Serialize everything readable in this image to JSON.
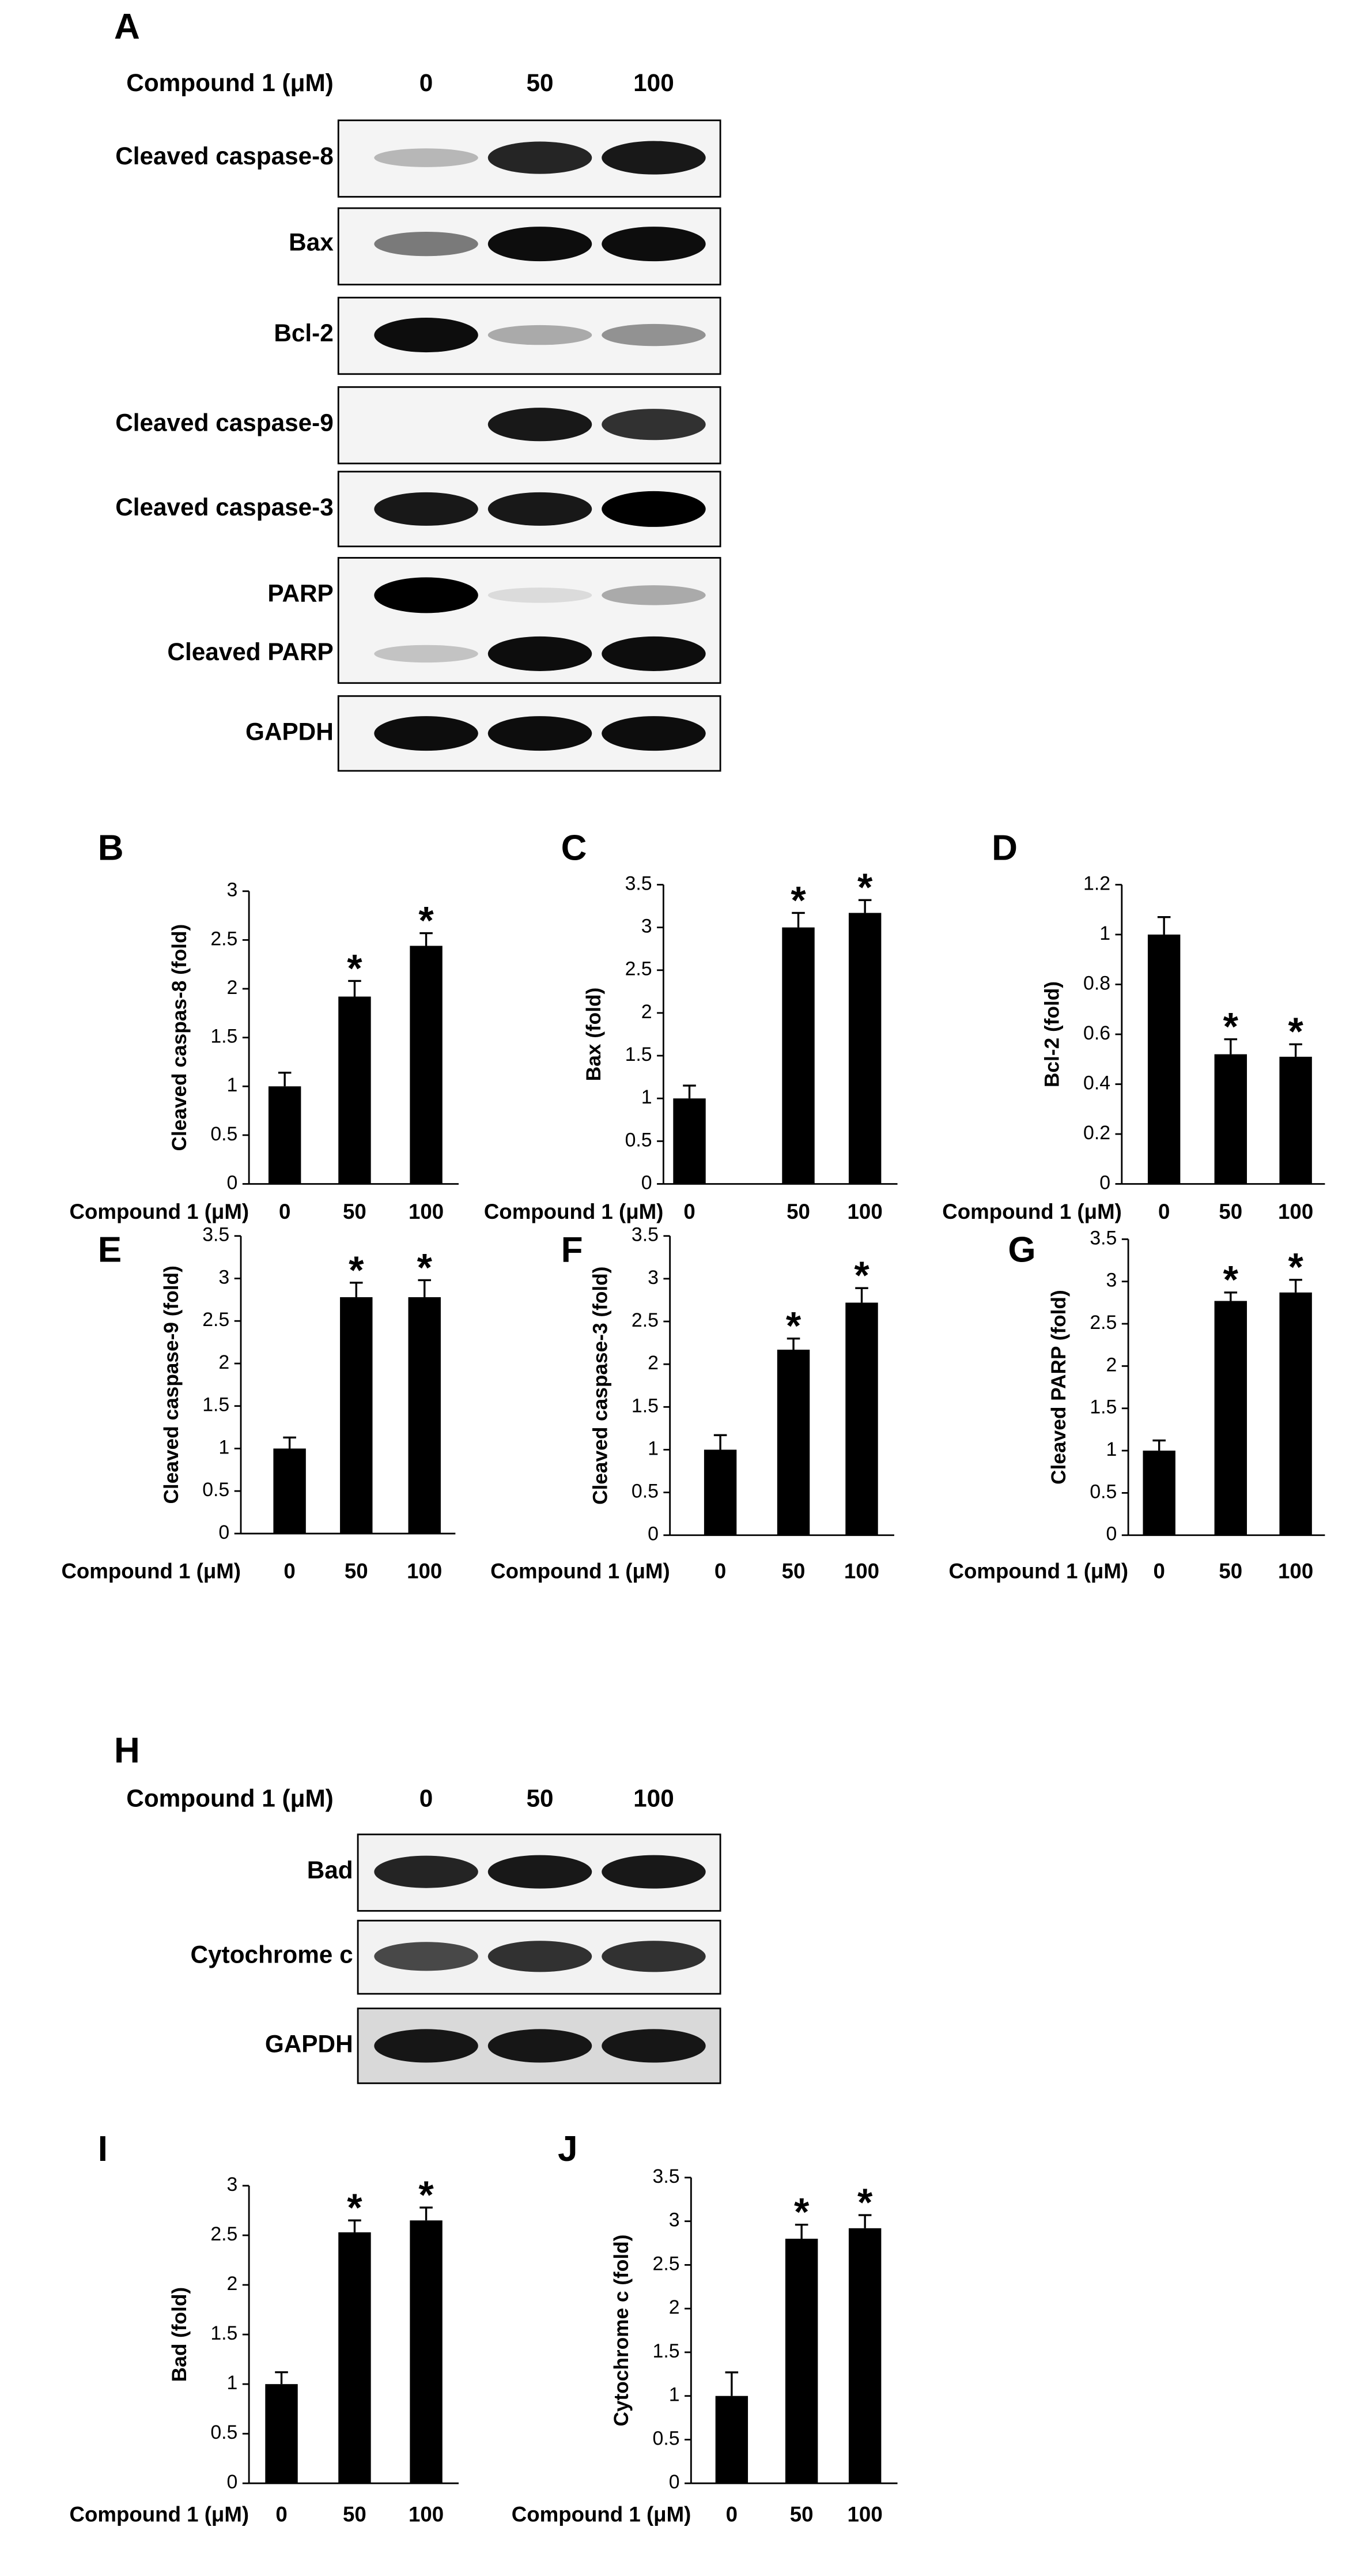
{
  "blots": [
    {
      "panel": "A",
      "header": "Compound 1 (μM)",
      "lanes": [
        "0",
        "50",
        "100"
      ],
      "rows": [
        "Cleaved caspase-8",
        "Bax",
        "Bcl-2",
        "Cleaved caspase-9",
        "Cleaved caspase-3",
        "PARP",
        "Cleaved PARP",
        "GAPDH"
      ]
    },
    {
      "panel": "H",
      "header": "Compound 1 (μM)",
      "lanes": [
        "0",
        "50",
        "100"
      ],
      "rows": [
        "Bad",
        "Cytochrome c",
        "GAPDH"
      ]
    }
  ],
  "chart_data": [
    {
      "type": "bar",
      "panel": "B",
      "ylabel": "Cleaved caspas-8 (fold)",
      "xlabel": "Compound 1 (μM)",
      "categories": [
        "0",
        "50",
        "100"
      ],
      "values": [
        1,
        1.92,
        2.44
      ],
      "errors": [
        0.14,
        0.16,
        0.13
      ],
      "significance": [
        null,
        "*",
        "*"
      ],
      "color": "#000000",
      "ylim": [
        0,
        3
      ],
      "yticks": [
        0,
        0.5,
        1,
        1.5,
        2,
        2.5,
        3
      ]
    },
    {
      "type": "bar",
      "panel": "C",
      "ylabel": "Bax (fold)",
      "xlabel": "Compound 1 (μM)",
      "categories": [
        "0",
        "50",
        "100"
      ],
      "values": [
        1,
        3.0,
        3.17
      ],
      "errors": [
        0.15,
        0.17,
        0.15
      ],
      "significance": [
        null,
        "*",
        "*"
      ],
      "color": "#000000",
      "ylim": [
        0,
        3.5
      ],
      "yticks": [
        0,
        0.5,
        1,
        1.5,
        2,
        2.5,
        3,
        3.5
      ]
    },
    {
      "type": "bar",
      "panel": "D",
      "ylabel": "Bcl-2 (fold)",
      "xlabel": "Compound 1 (μM)",
      "categories": [
        "0",
        "50",
        "100"
      ],
      "values": [
        1,
        0.52,
        0.51
      ],
      "errors": [
        0.07,
        0.06,
        0.05
      ],
      "significance": [
        null,
        "*",
        "*"
      ],
      "color": "#000000",
      "ylim": [
        0,
        1.2
      ],
      "yticks": [
        0,
        0.2,
        0.4,
        0.6,
        0.8,
        1,
        1.2
      ]
    },
    {
      "type": "bar",
      "panel": "E",
      "ylabel": "Cleaved caspase-9 (fold)",
      "xlabel": "Compound 1 (μM)",
      "categories": [
        "0",
        "50",
        "100"
      ],
      "values": [
        1,
        2.78,
        2.78
      ],
      "errors": [
        0.13,
        0.17,
        0.2
      ],
      "significance": [
        null,
        "*",
        "*"
      ],
      "color": "#000000",
      "ylim": [
        0,
        3.5
      ],
      "yticks": [
        0,
        0.5,
        1,
        1.5,
        2,
        2.5,
        3,
        3.5
      ]
    },
    {
      "type": "bar",
      "panel": "F",
      "ylabel": "Cleaved caspase-3 (fold)",
      "xlabel": "Compound 1 (μM)",
      "categories": [
        "0",
        "50",
        "100"
      ],
      "values": [
        1,
        2.17,
        2.72
      ],
      "errors": [
        0.17,
        0.13,
        0.17
      ],
      "significance": [
        null,
        "*",
        "*"
      ],
      "color": "#000000",
      "ylim": [
        0,
        3.5
      ],
      "yticks": [
        0,
        0.5,
        1,
        1.5,
        2,
        2.5,
        3,
        3.5
      ]
    },
    {
      "type": "bar",
      "panel": "G",
      "ylabel": "Cleaved PARP (fold)",
      "xlabel": "Compound 1 (μM)",
      "categories": [
        "0",
        "50",
        "100"
      ],
      "values": [
        1,
        2.77,
        2.87
      ],
      "errors": [
        0.12,
        0.1,
        0.15
      ],
      "significance": [
        null,
        "*",
        "*"
      ],
      "color": "#000000",
      "ylim": [
        0,
        3.5
      ],
      "yticks": [
        0,
        0.5,
        1,
        1.5,
        2,
        2.5,
        3,
        3.5
      ]
    },
    {
      "type": "bar",
      "panel": "I",
      "ylabel": "Bad (fold)",
      "xlabel": "Compound 1 (μM)",
      "categories": [
        "0",
        "50",
        "100"
      ],
      "values": [
        1,
        2.53,
        2.65
      ],
      "errors": [
        0.12,
        0.12,
        0.13
      ],
      "significance": [
        null,
        "*",
        "*"
      ],
      "color": "#000000",
      "ylim": [
        0,
        3
      ],
      "yticks": [
        0,
        0.5,
        1,
        1.5,
        2,
        2.5,
        3
      ]
    },
    {
      "type": "bar",
      "panel": "J",
      "ylabel": "Cytochrome c (fold)",
      "xlabel": "Compound 1 (μM)",
      "categories": [
        "0",
        "50",
        "100"
      ],
      "values": [
        1,
        2.8,
        2.92
      ],
      "errors": [
        0.27,
        0.16,
        0.15
      ],
      "significance": [
        null,
        "*",
        "*"
      ],
      "color": "#000000",
      "ylim": [
        0,
        3.5
      ],
      "yticks": [
        0,
        0.5,
        1,
        1.5,
        2,
        2.5,
        3,
        3.5
      ]
    }
  ]
}
